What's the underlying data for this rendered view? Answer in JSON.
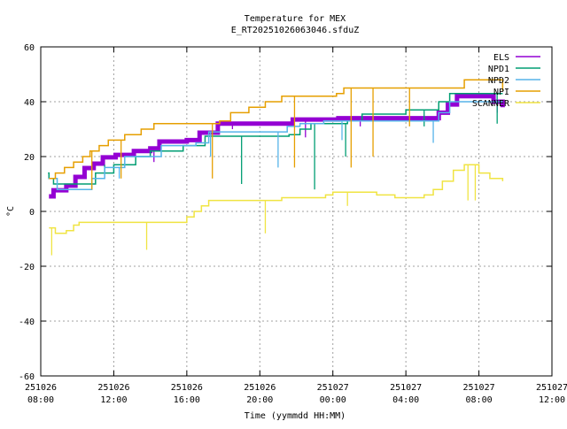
{
  "chart_data": {
    "type": "line",
    "title": "Temperature for MEX",
    "subtitle": "E_RT20251026063046.sfduZ",
    "xlabel": "Time (yymmdd HH:MM)",
    "ylabel": "°C",
    "x_unit": "hours since 251026 08:00",
    "xlim": [
      0,
      28
    ],
    "ylim": [
      -60,
      60
    ],
    "yticks": [
      -60,
      -40,
      -20,
      0,
      20,
      40,
      60
    ],
    "xticks": [
      {
        "x": 0,
        "date": "251026",
        "time": "08:00"
      },
      {
        "x": 4,
        "date": "251026",
        "time": "12:00"
      },
      {
        "x": 8,
        "date": "251026",
        "time": "16:00"
      },
      {
        "x": 12,
        "date": "251026",
        "time": "20:00"
      },
      {
        "x": 16,
        "date": "251027",
        "time": "00:00"
      },
      {
        "x": 20,
        "date": "251027",
        "time": "04:00"
      },
      {
        "x": 24,
        "date": "251027",
        "time": "08:00"
      },
      {
        "x": 28,
        "date": "251027",
        "time": "12:00"
      }
    ],
    "grid": true,
    "legend_position": "top-right",
    "series": [
      {
        "name": "ELS",
        "color": "#9400d3",
        "width": 5,
        "points": [
          [
            0.45,
            5.5
          ],
          [
            0.7,
            7.7
          ],
          [
            1.4,
            9.4
          ],
          [
            1.9,
            12.6
          ],
          [
            2.4,
            15.8
          ],
          [
            2.9,
            17.4
          ],
          [
            3.4,
            19.7
          ],
          [
            4.1,
            20.6
          ],
          [
            5.1,
            22
          ],
          [
            6.0,
            23
          ],
          [
            6.5,
            25.5
          ],
          [
            8.0,
            26
          ],
          [
            8.7,
            28.7
          ],
          [
            9.7,
            32
          ],
          [
            13.8,
            33.5
          ],
          [
            16.3,
            34
          ],
          [
            21.3,
            34
          ],
          [
            21.8,
            36
          ],
          [
            22.3,
            39
          ],
          [
            22.8,
            42
          ],
          [
            24.8,
            40
          ],
          [
            25.3,
            38
          ]
        ],
        "spikes": [
          [
            6.2,
            18
          ],
          [
            10.5,
            30
          ],
          [
            14.5,
            27
          ],
          [
            17.5,
            31
          ],
          [
            25,
            36
          ]
        ]
      },
      {
        "name": "NPD1",
        "color": "#009e73",
        "width": 1.5,
        "points": [
          [
            0.4,
            14
          ],
          [
            0.45,
            12
          ],
          [
            0.7,
            10
          ],
          [
            2.6,
            10
          ],
          [
            3.0,
            14
          ],
          [
            4.0,
            17
          ],
          [
            5.2,
            20
          ],
          [
            6.0,
            22
          ],
          [
            7.8,
            24
          ],
          [
            9.0,
            27.4
          ],
          [
            13.6,
            28
          ],
          [
            14.2,
            30
          ],
          [
            14.8,
            32
          ],
          [
            16.8,
            33
          ],
          [
            17.6,
            35.5
          ],
          [
            20.0,
            37
          ],
          [
            21.3,
            37
          ],
          [
            21.8,
            40
          ],
          [
            22.4,
            43
          ],
          [
            25.3,
            43
          ]
        ],
        "spikes": [
          [
            3.5,
            17
          ],
          [
            11.0,
            10
          ],
          [
            15.0,
            8
          ],
          [
            16.7,
            20
          ],
          [
            21.0,
            31
          ],
          [
            25.0,
            32
          ]
        ]
      },
      {
        "name": "NPD2",
        "color": "#56b4e9",
        "width": 1.5,
        "points": [
          [
            0.4,
            12
          ],
          [
            0.9,
            8
          ],
          [
            2.4,
            8
          ],
          [
            2.8,
            12
          ],
          [
            3.5,
            16
          ],
          [
            4.6,
            20
          ],
          [
            6.2,
            20
          ],
          [
            6.6,
            24
          ],
          [
            8.5,
            25
          ],
          [
            9.2,
            29
          ],
          [
            13.5,
            31
          ],
          [
            14.2,
            32
          ],
          [
            15.5,
            33
          ],
          [
            21.4,
            33
          ],
          [
            21.8,
            36
          ],
          [
            22.4,
            40
          ],
          [
            25.3,
            40
          ]
        ],
        "spikes": [
          [
            4.3,
            12
          ],
          [
            9.3,
            20
          ],
          [
            13.0,
            16
          ],
          [
            16.5,
            26
          ],
          [
            21.5,
            25
          ]
        ]
      },
      {
        "name": "NPI",
        "color": "#e69f00",
        "width": 1.5,
        "points": [
          [
            0.45,
            12
          ],
          [
            0.8,
            14
          ],
          [
            1.3,
            16
          ],
          [
            1.8,
            18
          ],
          [
            2.3,
            20
          ],
          [
            2.7,
            22
          ],
          [
            3.2,
            24
          ],
          [
            3.7,
            26
          ],
          [
            4.6,
            28
          ],
          [
            5.5,
            30
          ],
          [
            6.2,
            32
          ],
          [
            9.8,
            33
          ],
          [
            10.4,
            36
          ],
          [
            11.4,
            38
          ],
          [
            12.3,
            40
          ],
          [
            13.2,
            42
          ],
          [
            16.2,
            43
          ],
          [
            16.6,
            45
          ],
          [
            22.8,
            45
          ],
          [
            23.2,
            48
          ],
          [
            25.3,
            44
          ]
        ],
        "spikes": [
          [
            2.8,
            8
          ],
          [
            4.4,
            12
          ],
          [
            9.4,
            12
          ],
          [
            13.9,
            16
          ],
          [
            17.0,
            16
          ],
          [
            18.2,
            20
          ],
          [
            20.2,
            31
          ]
        ]
      },
      {
        "name": "SCANNER",
        "color": "#f0e442",
        "width": 1.5,
        "points": [
          [
            0.45,
            -6
          ],
          [
            0.8,
            -8
          ],
          [
            1.4,
            -7
          ],
          [
            1.8,
            -5
          ],
          [
            2.1,
            -4
          ],
          [
            7.6,
            -4
          ],
          [
            8.0,
            -2
          ],
          [
            8.4,
            0
          ],
          [
            8.8,
            2
          ],
          [
            9.2,
            4
          ],
          [
            12.6,
            4
          ],
          [
            13.2,
            5
          ],
          [
            15.6,
            6
          ],
          [
            16.0,
            7
          ],
          [
            18.4,
            6
          ],
          [
            19.4,
            5
          ],
          [
            21.0,
            6
          ],
          [
            21.5,
            8
          ],
          [
            22.0,
            11
          ],
          [
            22.6,
            15
          ],
          [
            23.2,
            17
          ],
          [
            24.0,
            14
          ],
          [
            24.6,
            12
          ],
          [
            25.3,
            11
          ]
        ],
        "spikes": [
          [
            0.6,
            -16
          ],
          [
            5.8,
            -14
          ],
          [
            12.3,
            -8
          ],
          [
            16.8,
            2
          ],
          [
            23.4,
            4
          ],
          [
            23.8,
            4
          ]
        ]
      }
    ]
  }
}
